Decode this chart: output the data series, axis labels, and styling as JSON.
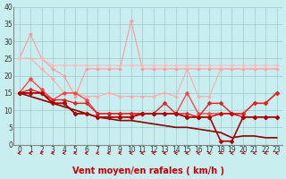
{
  "x": [
    0,
    1,
    2,
    3,
    4,
    5,
    6,
    7,
    8,
    9,
    10,
    11,
    12,
    13,
    14,
    15,
    16,
    17,
    18,
    19,
    20,
    21,
    22,
    23
  ],
  "series": [
    {
      "name": "line_pink1",
      "color": "#ff9999",
      "linewidth": 0.8,
      "marker": "D",
      "markersize": 2.0,
      "y": [
        25,
        32,
        25,
        22,
        20,
        14,
        22,
        22,
        22,
        22,
        36,
        22,
        22,
        22,
        22,
        22,
        22,
        22,
        22,
        22,
        22,
        22,
        22,
        22
      ]
    },
    {
      "name": "line_pink2",
      "color": "#ffaaaa",
      "linewidth": 0.8,
      "marker": "D",
      "markersize": 2.0,
      "y": [
        25,
        25,
        22,
        19,
        15,
        15,
        14,
        14,
        15,
        14,
        14,
        14,
        14,
        15,
        14,
        22,
        14,
        14,
        22,
        22,
        22,
        22,
        22,
        22
      ]
    },
    {
      "name": "line_pink3",
      "color": "#ffbbbb",
      "linewidth": 0.8,
      "marker": "D",
      "markersize": 2.0,
      "y": [
        25,
        25,
        25,
        23,
        23,
        23,
        23,
        23,
        23,
        23,
        23,
        23,
        23,
        23,
        23,
        23,
        23,
        23,
        23,
        23,
        23,
        23,
        23,
        23
      ]
    },
    {
      "name": "line_red1",
      "color": "#ff4444",
      "linewidth": 1.0,
      "marker": "D",
      "markersize": 2.5,
      "y": [
        15,
        19,
        16,
        13,
        15,
        15,
        13,
        9,
        9,
        9,
        9,
        9,
        9,
        9,
        9,
        15,
        9,
        9,
        9,
        9,
        9,
        12,
        12,
        15
      ]
    },
    {
      "name": "line_red2",
      "color": "#dd2222",
      "linewidth": 1.0,
      "marker": "D",
      "markersize": 2.5,
      "y": [
        15,
        16,
        15,
        13,
        13,
        12,
        12,
        9,
        9,
        9,
        9,
        9,
        9,
        12,
        9,
        9,
        8,
        12,
        12,
        9,
        9,
        12,
        12,
        15
      ]
    },
    {
      "name": "line_red3",
      "color": "#cc0000",
      "linewidth": 1.0,
      "marker": "D",
      "markersize": 2.5,
      "y": [
        15,
        15,
        15,
        12,
        12,
        9,
        9,
        8,
        8,
        8,
        8,
        9,
        9,
        9,
        9,
        8,
        8,
        8,
        9,
        9,
        8,
        8,
        8,
        8
      ]
    },
    {
      "name": "line_darkred1",
      "color": "#aa0000",
      "linewidth": 1.2,
      "marker": "D",
      "markersize": 2.5,
      "y": [
        15,
        15,
        15,
        12,
        12,
        9,
        9,
        8,
        8,
        8,
        8,
        9,
        9,
        9,
        9,
        8,
        8,
        8,
        1,
        1,
        8,
        8,
        8,
        8
      ]
    },
    {
      "name": "line_darkred2",
      "color": "#880000",
      "linewidth": 1.2,
      "marker": null,
      "markersize": 0,
      "y": [
        15,
        14,
        13,
        12,
        11,
        10,
        9,
        8,
        7.5,
        7,
        7,
        6.5,
        6,
        5.5,
        5,
        5,
        4.5,
        4,
        3.5,
        2,
        2.5,
        2.5,
        2,
        2
      ]
    }
  ],
  "arrow_angles": [
    270,
    270,
    270,
    270,
    270,
    270,
    270,
    270,
    270,
    270,
    270,
    270,
    300,
    270,
    300,
    270,
    300,
    270,
    225,
    270,
    225,
    240,
    240,
    240
  ],
  "xlabel": "Vent moyen/en rafales ( km/h )",
  "xlim_min": -0.5,
  "xlim_max": 23.5,
  "ylim": [
    0,
    40
  ],
  "yticks": [
    0,
    5,
    10,
    15,
    20,
    25,
    30,
    35,
    40
  ],
  "xticks": [
    0,
    1,
    2,
    3,
    4,
    5,
    6,
    7,
    8,
    9,
    10,
    11,
    12,
    13,
    14,
    15,
    16,
    17,
    18,
    19,
    20,
    21,
    22,
    23
  ],
  "bg_color": "#c8eef0",
  "grid_color": "#a0c8cc",
  "arrow_color": "#cc0000",
  "tick_fontsize": 5.5,
  "xlabel_fontsize": 7,
  "xlabel_color": "#cc0000"
}
